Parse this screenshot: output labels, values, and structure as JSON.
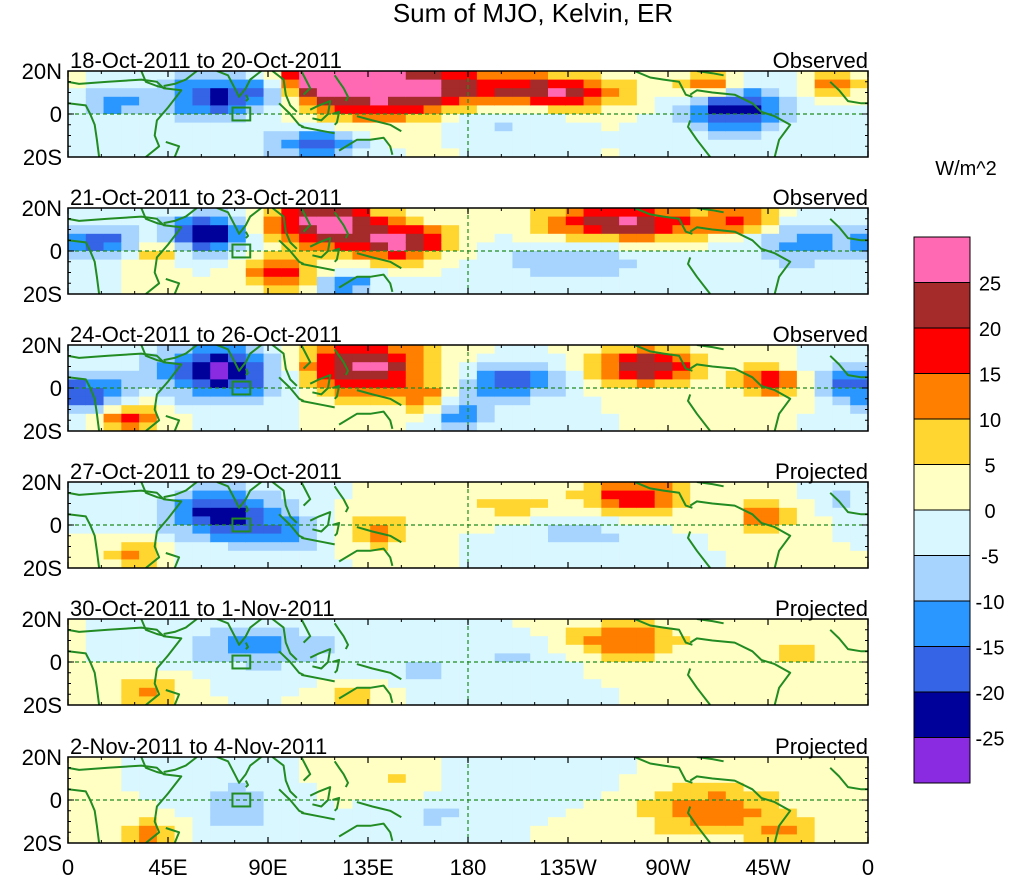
{
  "chart_data": {
    "type": "heatmap",
    "title": "Sum of MJO, Kelvin, ER",
    "units_label": "W/m^2",
    "x_ticks": [
      "0",
      "45E",
      "90E",
      "135E",
      "180",
      "135W",
      "90W",
      "45W",
      "0"
    ],
    "x_tick_lon": [
      0,
      45,
      90,
      135,
      180,
      225,
      270,
      315,
      360
    ],
    "y_ticks": [
      "20N",
      "0",
      "20S"
    ],
    "y_tick_lat": [
      20,
      0,
      -20
    ],
    "xlim": [
      0,
      360
    ],
    "ylim": [
      -20,
      20
    ],
    "box_region": {
      "lon": [
        74,
        82
      ],
      "lat": [
        -3,
        3
      ]
    },
    "panels": [
      {
        "date_range": "18-Oct-2011 to 20-Oct-2011",
        "status": "Observed",
        "blobs": [
          [
            145,
            12,
            38,
            10,
            30
          ],
          [
            115,
            16,
            15,
            5,
            20
          ],
          [
            222,
            10,
            20,
            5,
            22
          ],
          [
            290,
            13,
            10,
            4,
            22
          ],
          [
            345,
            14,
            8,
            4,
            14
          ],
          [
            68,
            8,
            18,
            8,
            -24
          ],
          [
            112,
            -14,
            14,
            5,
            -20
          ],
          [
            92,
            12,
            10,
            5,
            -14
          ],
          [
            300,
            3,
            16,
            8,
            -24
          ],
          [
            20,
            5,
            10,
            5,
            -12
          ],
          [
            190,
            -2,
            20,
            6,
            -10
          ]
        ]
      },
      {
        "date_range": "21-Oct-2011 to 23-Oct-2011",
        "status": "Observed",
        "blobs": [
          [
            115,
            13,
            18,
            8,
            27
          ],
          [
            150,
            4,
            16,
            6,
            25
          ],
          [
            250,
            13,
            26,
            6,
            26
          ],
          [
            95,
            -11,
            12,
            5,
            18
          ],
          [
            38,
            0,
            8,
            5,
            12
          ],
          [
            305,
            14,
            12,
            5,
            14
          ],
          [
            62,
            8,
            12,
            6,
            -27
          ],
          [
            15,
            4,
            14,
            5,
            -18
          ],
          [
            230,
            -4,
            30,
            8,
            -8
          ],
          [
            330,
            4,
            18,
            8,
            -12
          ],
          [
            125,
            -15,
            10,
            4,
            -14
          ]
        ]
      },
      {
        "date_range": "24-Oct-2011 to 26-Oct-2011",
        "status": "Observed",
        "blobs": [
          [
            132,
            10,
            22,
            9,
            27
          ],
          [
            260,
            10,
            16,
            6,
            25
          ],
          [
            316,
            3,
            10,
            5,
            18
          ],
          [
            28,
            -14,
            10,
            5,
            18
          ],
          [
            160,
            -5,
            10,
            4,
            12
          ],
          [
            70,
            8,
            20,
            9,
            -27
          ],
          [
            10,
            -3,
            12,
            6,
            -20
          ],
          [
            200,
            3,
            16,
            6,
            -18
          ],
          [
            178,
            -12,
            10,
            5,
            -14
          ],
          [
            348,
            4,
            10,
            5,
            -14
          ]
        ]
      },
      {
        "date_range": "27-Oct-2011 to 29-Oct-2011",
        "status": "Projected",
        "blobs": [
          [
            255,
            13,
            16,
            6,
            20
          ],
          [
            315,
            4,
            10,
            5,
            15
          ],
          [
            140,
            -3,
            12,
            6,
            12
          ],
          [
            30,
            -14,
            8,
            5,
            12
          ],
          [
            200,
            8,
            14,
            5,
            8
          ],
          [
            70,
            5,
            18,
            8,
            -24
          ],
          [
            100,
            -5,
            15,
            6,
            -10
          ],
          [
            230,
            -4,
            18,
            6,
            -8
          ],
          [
            350,
            12,
            10,
            5,
            -6
          ]
        ]
      },
      {
        "date_range": "30-Oct-2011 to 1-Nov-2011",
        "status": "Projected",
        "blobs": [
          [
            250,
            10,
            18,
            6,
            15
          ],
          [
            35,
            -14,
            10,
            6,
            12
          ],
          [
            130,
            -15,
            10,
            4,
            8
          ],
          [
            330,
            4,
            14,
            6,
            6
          ],
          [
            85,
            7,
            25,
            7,
            -12
          ],
          [
            160,
            -5,
            14,
            5,
            -7
          ],
          [
            205,
            2,
            15,
            6,
            -6
          ]
        ]
      },
      {
        "date_range": "2-Nov-2011 to 4-Nov-2011",
        "status": "Projected",
        "blobs": [
          [
            290,
            -5,
            22,
            9,
            14
          ],
          [
            35,
            -16,
            10,
            5,
            12
          ],
          [
            325,
            -15,
            10,
            4,
            10
          ],
          [
            150,
            10,
            14,
            5,
            6
          ],
          [
            75,
            -3,
            12,
            8,
            -10
          ],
          [
            200,
            8,
            25,
            6,
            -5
          ],
          [
            165,
            -8,
            14,
            5,
            -6
          ]
        ]
      }
    ],
    "colorbar": {
      "levels": [
        -25,
        -20,
        -15,
        -10,
        -5,
        0,
        5,
        10,
        15,
        20,
        25
      ],
      "tick_labels": [
        "25",
        "20",
        "15",
        "10",
        "5",
        "0",
        "-5",
        "-10",
        "-15",
        "-20",
        "-25"
      ],
      "colors_top_to_bottom": [
        "#ff69b4",
        "#a52a2a",
        "#ff0000",
        "#ff7f00",
        "#ffd530",
        "#ffffc4",
        "#d9f7ff",
        "#a6d4ff",
        "#2a96ff",
        "#3564e6",
        "#00009b",
        "#8a2be2"
      ]
    },
    "colors": {
      "coastline": "#228b22",
      "box": "#228b22",
      "reference_line": "#228b22",
      "frame": "#000000"
    }
  }
}
